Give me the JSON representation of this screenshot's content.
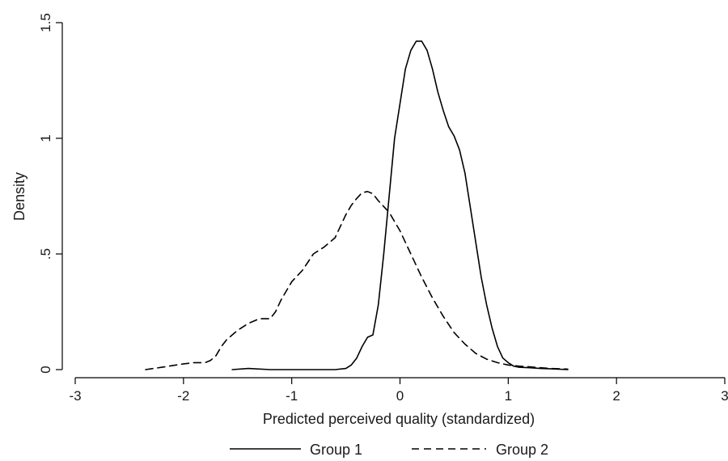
{
  "chart_data": {
    "type": "line",
    "title": "",
    "xlabel": "Predicted perceived quality (standardized)",
    "ylabel": "Density",
    "xlim": [
      -3,
      3
    ],
    "ylim": [
      0,
      1.5
    ],
    "x_ticks": [
      {
        "value": -3,
        "label": "-3"
      },
      {
        "value": -2,
        "label": "-2"
      },
      {
        "value": -1,
        "label": "-1"
      },
      {
        "value": 0,
        "label": "0"
      },
      {
        "value": 1,
        "label": "1"
      },
      {
        "value": 2,
        "label": "2"
      },
      {
        "value": 3,
        "label": "3"
      }
    ],
    "y_ticks": [
      {
        "value": 0,
        "label": "0"
      },
      {
        "value": 0.5,
        "label": ".5"
      },
      {
        "value": 1,
        "label": "1"
      },
      {
        "value": 1.5,
        "label": "1.5"
      }
    ],
    "grid": false,
    "legend_position": "bottom",
    "series": [
      {
        "name": "Group 1",
        "style": "solid",
        "color": "#000000",
        "x": [
          -1.55,
          -1.4,
          -1.2,
          -1.0,
          -0.8,
          -0.6,
          -0.5,
          -0.45,
          -0.4,
          -0.35,
          -0.3,
          -0.25,
          -0.2,
          -0.15,
          -0.1,
          -0.05,
          0.0,
          0.05,
          0.1,
          0.15,
          0.2,
          0.25,
          0.3,
          0.35,
          0.4,
          0.45,
          0.5,
          0.55,
          0.6,
          0.65,
          0.7,
          0.75,
          0.8,
          0.85,
          0.9,
          0.95,
          1.0,
          1.05,
          1.1,
          1.2,
          1.3,
          1.4,
          1.55
        ],
        "values": [
          0.0,
          0.005,
          0.0,
          0.0,
          0.0,
          0.0,
          0.005,
          0.02,
          0.05,
          0.1,
          0.14,
          0.15,
          0.28,
          0.5,
          0.75,
          1.0,
          1.15,
          1.3,
          1.38,
          1.42,
          1.42,
          1.38,
          1.3,
          1.2,
          1.12,
          1.05,
          1.01,
          0.95,
          0.85,
          0.7,
          0.55,
          0.4,
          0.28,
          0.18,
          0.1,
          0.05,
          0.03,
          0.015,
          0.01,
          0.008,
          0.005,
          0.003,
          0.0
        ]
      },
      {
        "name": "Group 2",
        "style": "dashed",
        "color": "#000000",
        "x": [
          -2.35,
          -2.2,
          -2.0,
          -1.9,
          -1.8,
          -1.75,
          -1.7,
          -1.65,
          -1.6,
          -1.5,
          -1.4,
          -1.3,
          -1.2,
          -1.15,
          -1.1,
          -1.0,
          -0.9,
          -0.8,
          -0.7,
          -0.6,
          -0.55,
          -0.5,
          -0.45,
          -0.4,
          -0.35,
          -0.3,
          -0.25,
          -0.2,
          -0.1,
          0.0,
          0.1,
          0.2,
          0.3,
          0.4,
          0.5,
          0.6,
          0.7,
          0.8,
          0.9,
          1.0,
          1.1,
          1.2,
          1.3,
          1.4,
          1.55
        ],
        "values": [
          0.0,
          0.01,
          0.025,
          0.03,
          0.03,
          0.04,
          0.06,
          0.1,
          0.13,
          0.17,
          0.2,
          0.22,
          0.22,
          0.25,
          0.3,
          0.38,
          0.43,
          0.5,
          0.53,
          0.57,
          0.62,
          0.67,
          0.71,
          0.74,
          0.765,
          0.77,
          0.76,
          0.73,
          0.68,
          0.6,
          0.5,
          0.4,
          0.31,
          0.23,
          0.16,
          0.11,
          0.07,
          0.045,
          0.03,
          0.02,
          0.015,
          0.012,
          0.008,
          0.005,
          0.002
        ]
      }
    ]
  }
}
